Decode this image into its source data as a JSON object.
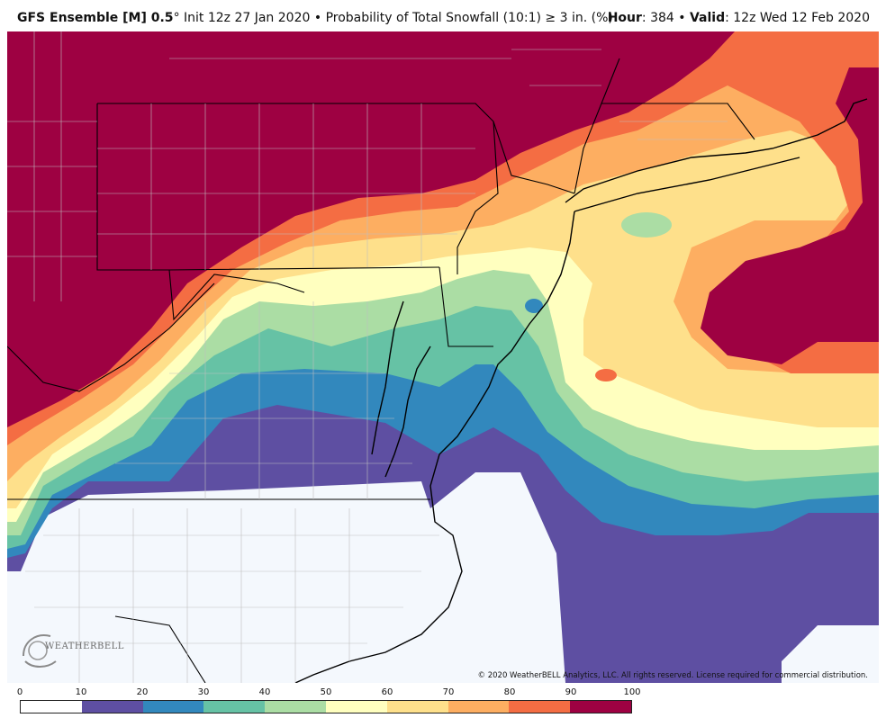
{
  "header": {
    "model": "GFS Ensemble [M] 0.5",
    "degree": "°",
    "init": " Init 12z 27 Jan 2020",
    "sep": " • ",
    "product": "Probability of Total Snowfall (10:1) ≥ 3 in. (%)",
    "hour_label": "Hour",
    "hour_value": ": 384 • ",
    "valid_label": "Valid",
    "valid_value": ": 12z Wed 12 Feb 2020"
  },
  "copyright": "© 2020 WeatherBELL Analytics, LLC. All rights reserved. License required for commercial distribution.",
  "logo": {
    "text": "WEATHERBELL",
    "icon": "weatherbell-logo-icon"
  },
  "legend": {
    "ticks": [
      "0",
      "10",
      "20",
      "30",
      "40",
      "50",
      "60",
      "70",
      "80",
      "90",
      "100"
    ],
    "colors": [
      "#ffffff",
      "#5e4fa2",
      "#3288bd",
      "#66c2a5",
      "#abdda4",
      "#ffffbf",
      "#fee08b",
      "#fdae61",
      "#f46d43",
      "#9e0142"
    ]
  }
}
